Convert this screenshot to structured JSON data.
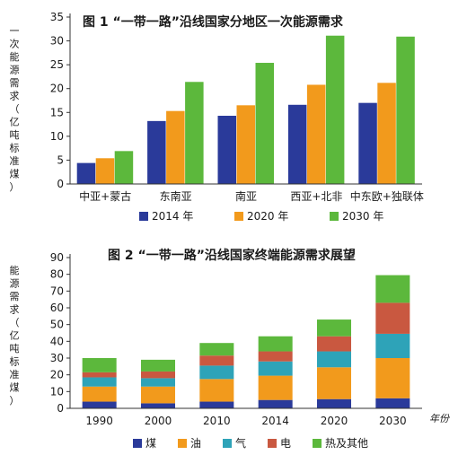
{
  "chart_data": [
    {
      "type": "bar",
      "title": "图 1 “一带一路”沿线国家分地区一次能源需求",
      "ylabel": "一次能源需求（亿吨标准煤）",
      "xlabel": "",
      "ylim": [
        0,
        35
      ],
      "yticks": [
        0,
        5,
        10,
        15,
        20,
        25,
        30,
        35
      ],
      "grid": false,
      "legend_position": "bottom",
      "categories": [
        "中亚+蒙古",
        "东南亚",
        "南亚",
        "西亚+北非",
        "中东欧+独联体"
      ],
      "series": [
        {
          "name": "2014 年",
          "color": "#2a3a9a",
          "values": [
            4.4,
            13.2,
            14.3,
            16.6,
            17.0
          ]
        },
        {
          "name": "2020 年",
          "color": "#f29a1c",
          "values": [
            5.4,
            15.3,
            16.5,
            20.8,
            21.2
          ]
        },
        {
          "name": "2030 年",
          "color": "#5cb83c",
          "values": [
            6.9,
            21.4,
            25.4,
            31.1,
            30.9
          ]
        }
      ]
    },
    {
      "type": "bar",
      "stacked": true,
      "title": "图 2 “一带一路”沿线国家终端能源需求展望",
      "ylabel": "能源需求（亿吨标准煤）",
      "xlabel": "年份",
      "ylim": [
        0,
        90
      ],
      "yticks": [
        0,
        10,
        20,
        30,
        40,
        50,
        60,
        70,
        80,
        90
      ],
      "grid": false,
      "legend_position": "bottom",
      "categories": [
        "1990",
        "2000",
        "2010",
        "2014",
        "2020",
        "2030"
      ],
      "series": [
        {
          "name": "煤",
          "color": "#2a3a9a",
          "values": [
            4,
            3,
            4,
            5,
            5.5,
            6
          ]
        },
        {
          "name": "油",
          "color": "#f29a1c",
          "values": [
            9,
            10,
            13.5,
            14.5,
            19,
            24
          ]
        },
        {
          "name": "气",
          "color": "#2ea3b8",
          "values": [
            5.5,
            5,
            8,
            8.5,
            9.5,
            14.5
          ]
        },
        {
          "name": "电",
          "color": "#c95840",
          "values": [
            3,
            4,
            6,
            6,
            9,
            18.5
          ]
        },
        {
          "name": "热及其他",
          "color": "#5cb83c",
          "values": [
            8.5,
            7,
            7.5,
            9,
            10,
            16.5
          ]
        }
      ]
    }
  ]
}
